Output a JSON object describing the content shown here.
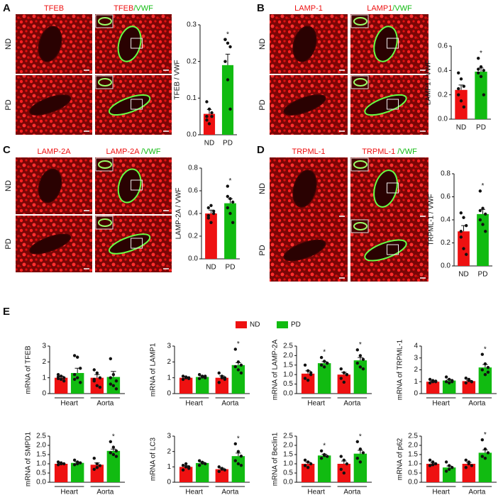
{
  "figure": {
    "panels": [
      {
        "letter": "A",
        "label": "TFEB",
        "merged": [
          "TFEB",
          "/VWF"
        ],
        "rows": [
          "ND",
          "PD"
        ]
      },
      {
        "letter": "B",
        "label": "LAMP-1",
        "merged": [
          "LAMP1",
          "/VWF"
        ],
        "rows": [
          "ND",
          "PD"
        ]
      },
      {
        "letter": "C",
        "label": "LAMP-2A",
        "merged": [
          "LAMP-2A",
          " /VWF"
        ],
        "rows": [
          "ND",
          "PD"
        ]
      },
      {
        "letter": "D",
        "label": "TRPML-1",
        "merged": [
          "TRPML-1",
          " /VWF"
        ],
        "rows": [
          "ND",
          "PD"
        ]
      },
      {
        "letter": "E"
      }
    ],
    "legend": [
      {
        "name": "ND",
        "color": "#ee1111"
      },
      {
        "name": "PD",
        "color": "#11bb11"
      }
    ]
  },
  "chart_data": [
    {
      "type": "bar",
      "ylabel": "TFEB / VWF",
      "categories": [
        "ND",
        "PD"
      ],
      "colors": [
        "#ee1111",
        "#11bb11"
      ],
      "values": [
        0.057,
        0.19
      ],
      "errors": [
        0.012,
        0.03
      ],
      "points": [
        [
          0.09,
          0.07,
          0.05,
          0.04,
          0.03,
          0.06,
          0.05
        ],
        [
          0.26,
          0.25,
          0.24,
          0.2,
          0.15,
          0.07,
          0.26
        ]
      ],
      "significance": [
        null,
        "*"
      ],
      "ylim": [
        0,
        0.3
      ],
      "yticks": [
        {
          "value": 0,
          "label": "0.0"
        },
        0.1,
        0.2,
        0.3
      ]
    },
    {
      "type": "bar",
      "ylabel": "LAMP1 / VWF",
      "categories": [
        "ND",
        "PD"
      ],
      "colors": [
        "#ee1111",
        "#11bb11"
      ],
      "values": [
        0.24,
        0.39
      ],
      "errors": [
        0.04,
        0.03
      ],
      "points": [
        [
          0.38,
          0.33,
          0.27,
          0.2,
          0.15,
          0.1,
          0.25
        ],
        [
          0.5,
          0.43,
          0.4,
          0.38,
          0.35,
          0.2,
          0.41
        ]
      ],
      "significance": [
        null,
        "*"
      ],
      "ylim": [
        0,
        0.6
      ],
      "yticks": [
        {
          "value": 0,
          "label": "0.0"
        },
        0.2,
        0.4,
        0.6
      ]
    },
    {
      "type": "bar",
      "ylabel": "LAMP-2A / VWF",
      "categories": [
        "ND",
        "PD"
      ],
      "colors": [
        "#ee1111",
        "#11bb11"
      ],
      "values": [
        0.4,
        0.49
      ],
      "errors": [
        0.03,
        0.04
      ],
      "points": [
        [
          0.45,
          0.47,
          0.4,
          0.36,
          0.32,
          0.42,
          0.38
        ],
        [
          0.64,
          0.53,
          0.5,
          0.45,
          0.4,
          0.32,
          0.55
        ]
      ],
      "significance": [
        null,
        "*"
      ],
      "ylim": [
        0,
        0.8
      ],
      "yticks": [
        {
          "value": 0,
          "label": "0.0"
        },
        0.2,
        0.4,
        0.6,
        0.8
      ]
    },
    {
      "type": "bar",
      "ylabel": "TRPML-1 / VWF",
      "categories": [
        "ND",
        "PD"
      ],
      "colors": [
        "#ee1111",
        "#11bb11"
      ],
      "values": [
        0.3,
        0.45
      ],
      "errors": [
        0.05,
        0.04
      ],
      "points": [
        [
          0.46,
          0.42,
          0.35,
          0.25,
          0.15,
          0.1,
          0.3
        ],
        [
          0.65,
          0.5,
          0.45,
          0.4,
          0.36,
          0.3,
          0.48
        ]
      ],
      "significance": [
        null,
        "*"
      ],
      "ylim": [
        0,
        0.8
      ],
      "yticks": [
        {
          "value": 0,
          "label": "0.0"
        },
        0.2,
        0.4,
        0.6,
        0.8
      ]
    },
    {
      "type": "bar",
      "ylabel": "mRNA of TFEB",
      "groups": [
        "Heart",
        "Aorta"
      ],
      "ylim": [
        0,
        3
      ],
      "yticks": [
        0,
        1,
        2,
        3
      ],
      "series": [
        {
          "color": "#ee1111",
          "values": [
            1.0,
            1.0
          ],
          "errors": [
            0.1,
            0.2
          ],
          "points": [
            [
              1.2,
              1.1,
              1.0,
              0.95,
              0.9,
              0.8,
              1.05
            ],
            [
              1.5,
              1.3,
              1.0,
              0.8,
              0.5,
              0.4,
              0.9
            ]
          ],
          "significance": [
            null,
            null
          ]
        },
        {
          "color": "#11bb11",
          "values": [
            1.3,
            1.05
          ],
          "errors": [
            0.3,
            0.35
          ],
          "points": [
            [
              2.4,
              2.3,
              1.6,
              1.2,
              1.0,
              0.7,
              0.9
            ],
            [
              2.2,
              1.2,
              0.8,
              0.6,
              0.5,
              0.3,
              1.0
            ]
          ],
          "significance": [
            null,
            null
          ]
        }
      ]
    },
    {
      "type": "bar",
      "ylabel": "mRNA of LAMP1",
      "groups": [
        "Heart",
        "Aorta"
      ],
      "ylim": [
        0,
        3
      ],
      "yticks": [
        0,
        1,
        2,
        3
      ],
      "series": [
        {
          "color": "#ee1111",
          "values": [
            1.0,
            1.0
          ],
          "errors": [
            0.05,
            0.12
          ],
          "points": [
            [
              1.1,
              1.0,
              0.95,
              0.9,
              1.05,
              1.0
            ],
            [
              1.3,
              1.1,
              0.9,
              0.7,
              1.0,
              1.0
            ]
          ],
          "significance": [
            null,
            null
          ]
        },
        {
          "color": "#11bb11",
          "values": [
            1.05,
            1.8
          ],
          "errors": [
            0.06,
            0.15
          ],
          "points": [
            [
              1.2,
              1.1,
              1.0,
              0.95,
              1.05,
              1.1
            ],
            [
              2.8,
              2.0,
              1.8,
              1.7,
              1.5,
              1.3
            ]
          ],
          "significance": [
            null,
            "*"
          ]
        }
      ]
    },
    {
      "type": "bar",
      "ylabel": "mRNA of LAMP-2A",
      "groups": [
        "Heart",
        "Aorta"
      ],
      "ylim": [
        0,
        2.5
      ],
      "yticks": [
        {
          "value": 0,
          "label": "0.0"
        },
        0.5,
        {
          "value": 1,
          "label": "1.0"
        },
        1.5,
        {
          "value": 2,
          "label": "2.0"
        },
        2.5
      ],
      "series": [
        {
          "color": "#ee1111",
          "values": [
            1.05,
            1.0
          ],
          "errors": [
            0.15,
            0.12
          ],
          "points": [
            [
              1.5,
              1.2,
              1.0,
              0.8,
              0.7,
              1.1
            ],
            [
              1.3,
              1.1,
              1.0,
              0.8,
              0.6,
              1.0
            ]
          ],
          "significance": [
            null,
            null
          ]
        },
        {
          "color": "#11bb11",
          "values": [
            1.6,
            1.75
          ],
          "errors": [
            0.08,
            0.15
          ],
          "points": [
            [
              1.9,
              1.7,
              1.6,
              1.5,
              1.4,
              1.6
            ],
            [
              2.3,
              2.0,
              1.8,
              1.6,
              1.4,
              1.3
            ]
          ],
          "significance": [
            "*",
            "*"
          ]
        }
      ]
    },
    {
      "type": "bar",
      "ylabel": "mRNA of TRPML-1",
      "groups": [
        "Heart",
        "Aorta"
      ],
      "ylim": [
        0,
        4
      ],
      "yticks": [
        0,
        1,
        2,
        3,
        4
      ],
      "series": [
        {
          "color": "#ee1111",
          "values": [
            1.0,
            1.05
          ],
          "errors": [
            0.05,
            0.08
          ],
          "points": [
            [
              1.2,
              1.1,
              1.0,
              0.9,
              1.0,
              1.05
            ],
            [
              1.3,
              1.1,
              1.0,
              0.9,
              1.2,
              1.0
            ]
          ],
          "significance": [
            null,
            null
          ]
        },
        {
          "color": "#11bb11",
          "values": [
            1.1,
            2.2
          ],
          "errors": [
            0.08,
            0.25
          ],
          "points": [
            [
              1.4,
              1.2,
              1.1,
              1.0,
              0.9,
              1.0
            ],
            [
              3.3,
              2.5,
              2.2,
              2.0,
              1.6,
              1.8
            ]
          ],
          "significance": [
            null,
            "*"
          ]
        }
      ]
    },
    {
      "type": "bar",
      "ylabel": "mRNA of SMPD1",
      "groups": [
        "Heart",
        "Aorta"
      ],
      "ylim": [
        0,
        2.5
      ],
      "yticks": [
        {
          "value": 0,
          "label": "0.0"
        },
        0.5,
        {
          "value": 1,
          "label": "1.0"
        },
        1.5,
        {
          "value": 2,
          "label": "2.0"
        },
        2.5
      ],
      "series": [
        {
          "color": "#ee1111",
          "values": [
            1.0,
            0.95
          ],
          "errors": [
            0.04,
            0.1
          ],
          "points": [
            [
              1.1,
              1.05,
              1.0,
              0.95,
              1.0
            ],
            [
              1.3,
              1.0,
              0.9,
              0.7,
              0.8
            ]
          ],
          "significance": [
            null,
            null
          ]
        },
        {
          "color": "#11bb11",
          "values": [
            1.05,
            1.7
          ],
          "errors": [
            0.05,
            0.1
          ],
          "points": [
            [
              1.2,
              1.1,
              1.05,
              0.95,
              1.0
            ],
            [
              2.2,
              1.9,
              1.7,
              1.6,
              1.5,
              1.4
            ]
          ],
          "significance": [
            null,
            "*"
          ]
        }
      ]
    },
    {
      "type": "bar",
      "ylabel": "mRNA of LC3",
      "groups": [
        "Heart",
        "Aorta"
      ],
      "ylim": [
        0,
        3
      ],
      "yticks": [
        0,
        1,
        2,
        3
      ],
      "series": [
        {
          "color": "#ee1111",
          "values": [
            1.0,
            0.85
          ],
          "errors": [
            0.08,
            0.07
          ],
          "points": [
            [
              1.1,
              1.0,
              0.9,
              0.8,
              1.2,
              1.0
            ],
            [
              1.0,
              0.9,
              0.8,
              0.7,
              0.85
            ]
          ],
          "significance": [
            null,
            null
          ]
        },
        {
          "color": "#11bb11",
          "values": [
            1.25,
            1.7
          ],
          "errors": [
            0.05,
            0.2
          ],
          "points": [
            [
              1.4,
              1.3,
              1.2,
              1.1,
              1.25
            ],
            [
              2.5,
              2.0,
              1.7,
              1.4,
              1.2,
              1.1
            ]
          ],
          "significance": [
            null,
            "*"
          ]
        }
      ]
    },
    {
      "type": "bar",
      "ylabel": "mRNA of Beclin1",
      "groups": [
        "Heart",
        "Aorta"
      ],
      "ylim": [
        0,
        2.5
      ],
      "yticks": [
        {
          "value": 0,
          "label": "0.0"
        },
        0.5,
        {
          "value": 1,
          "label": "1.0"
        },
        1.5,
        {
          "value": 2,
          "label": "2.0"
        },
        2.5
      ],
      "series": [
        {
          "color": "#ee1111",
          "values": [
            1.0,
            1.0
          ],
          "errors": [
            0.08,
            0.15
          ],
          "points": [
            [
              1.2,
              1.1,
              1.0,
              0.9,
              0.8
            ],
            [
              1.4,
              1.2,
              1.0,
              0.7,
              0.5
            ]
          ],
          "significance": [
            null,
            null
          ]
        },
        {
          "color": "#11bb11",
          "values": [
            1.45,
            1.55
          ],
          "errors": [
            0.07,
            0.18
          ],
          "points": [
            [
              1.7,
              1.5,
              1.4,
              1.3,
              1.45
            ],
            [
              2.2,
              1.8,
              1.6,
              1.3,
              1.1
            ]
          ],
          "significance": [
            "*",
            "*"
          ]
        }
      ]
    },
    {
      "type": "bar",
      "ylabel": "mRNA of p62",
      "groups": [
        "Heart",
        "Aorta"
      ],
      "ylim": [
        0,
        2.5
      ],
      "yticks": [
        {
          "value": 0,
          "label": "0.0"
        },
        0.5,
        {
          "value": 1,
          "label": "1.0"
        },
        1.5,
        {
          "value": 2,
          "label": "2.0"
        },
        2.5
      ],
      "series": [
        {
          "color": "#ee1111",
          "values": [
            1.0,
            1.0
          ],
          "errors": [
            0.05,
            0.07
          ],
          "points": [
            [
              1.2,
              1.1,
              1.0,
              0.9,
              0.95
            ],
            [
              1.2,
              1.0,
              0.9,
              0.8,
              1.1
            ]
          ],
          "significance": [
            null,
            null
          ]
        },
        {
          "color": "#11bb11",
          "values": [
            0.8,
            1.6
          ],
          "errors": [
            0.08,
            0.15
          ],
          "points": [
            [
              1.1,
              0.9,
              0.8,
              0.6,
              0.7
            ],
            [
              2.3,
              1.8,
              1.6,
              1.4,
              1.3
            ]
          ],
          "significance": [
            null,
            "*"
          ]
        }
      ]
    }
  ]
}
